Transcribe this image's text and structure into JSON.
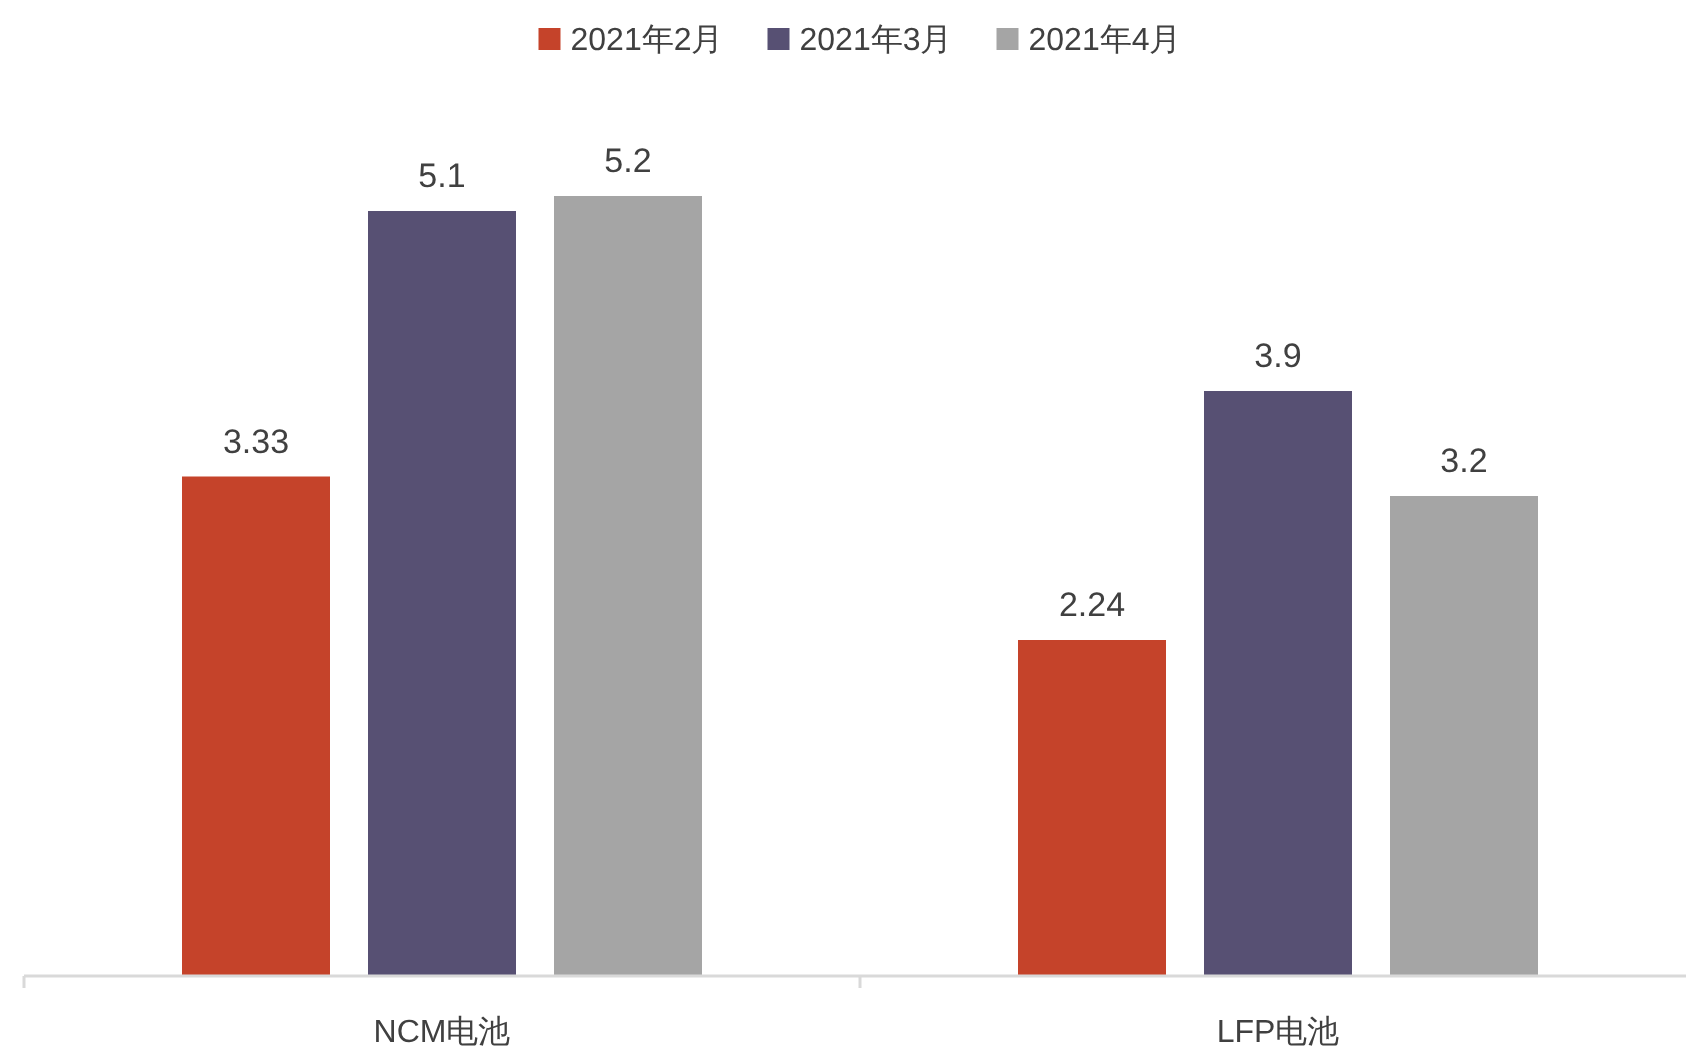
{
  "chart_data": {
    "type": "bar",
    "categories": [
      "NCM电池",
      "LFP电池"
    ],
    "series": [
      {
        "name": "2021年2月",
        "color": "#c5432a",
        "values": [
          3.33,
          2.24
        ]
      },
      {
        "name": "2021年3月",
        "color": "#575073",
        "values": [
          5.1,
          3.9
        ]
      },
      {
        "name": "2021年4月",
        "color": "#a5a5a5",
        "values": [
          5.2,
          3.2
        ]
      }
    ],
    "data_labels": true,
    "legend": "top"
  }
}
